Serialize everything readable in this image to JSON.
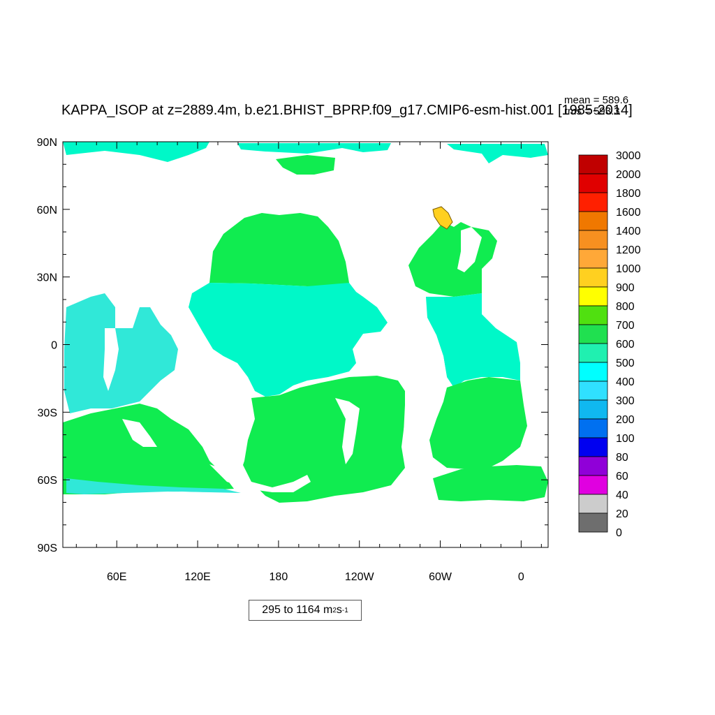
{
  "title": "KAPPA_ISOP at z=2889.4m, b.e21.BHIST_BPRP.f09_g17.CMIP6-esm-hist.001 [1985-2014]",
  "stats": {
    "mean": "mean = 589.6",
    "rms": "rms = 593.3"
  },
  "range": {
    "text": "295 to 1164 m",
    "sup1": "2",
    "mid": " s",
    "sup2": "-1"
  },
  "map": {
    "lat_labels": [
      "90N",
      "60N",
      "30N",
      "0",
      "30S",
      "60S",
      "90S"
    ],
    "lon_labels": [
      "60E",
      "120E",
      "180",
      "120W",
      "60W",
      "0"
    ],
    "lon_range": [
      20,
      380
    ],
    "lat_range": [
      -90,
      90
    ]
  },
  "colorbar": {
    "labels": [
      "3000",
      "2000",
      "1800",
      "1600",
      "1400",
      "1200",
      "1000",
      "900",
      "800",
      "700",
      "600",
      "500",
      "400",
      "300",
      "200",
      "100",
      "80",
      "60",
      "40",
      "20",
      "0"
    ],
    "colors": [
      "#c00000",
      "#e00000",
      "#ff2000",
      "#f07800",
      "#f79020",
      "#ffa838",
      "#ffd020",
      "#ffff00",
      "#50e010",
      "#20e050",
      "#20f0b0",
      "#00ffff",
      "#30e0ff",
      "#10b8f0",
      "#0070f0",
      "#0000f0",
      "#9000d8",
      "#e000e0",
      "#cccccc",
      "#6e6e6e"
    ],
    "ocean_colors": {
      "band_700": "#10ec50",
      "band_600": "#00f8c8",
      "band_500": "#30e8d8",
      "coast": "#10b8f0"
    }
  }
}
